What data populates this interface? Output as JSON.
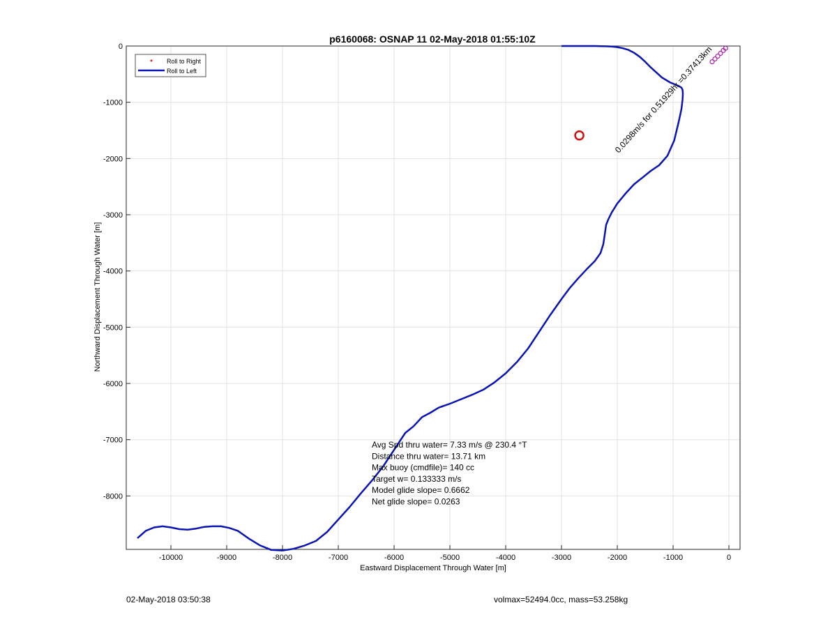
{
  "chart_data": {
    "type": "line",
    "title": "p6160068: OSNAP 11 02-May-2018 01:55:10Z",
    "xlabel": "Eastward Displacement Through Water [m]",
    "ylabel": "Northward Displacement Through Water [m]",
    "xlim": [
      -10800,
      200
    ],
    "ylim": [
      -8950,
      0
    ],
    "xticks": [
      -10000,
      -9000,
      -8000,
      -7000,
      -6000,
      -5000,
      -4000,
      -3000,
      -2000,
      -1000,
      0
    ],
    "yticks": [
      0,
      -1000,
      -2000,
      -3000,
      -4000,
      -5000,
      -6000,
      -7000,
      -8000
    ],
    "xtick_labels": [
      "-10000",
      "-9000",
      "-8000",
      "-7000",
      "-6000",
      "-5000",
      "-4000",
      "-3000",
      "-2000",
      "-1000",
      "0"
    ],
    "ytick_labels": [
      "0",
      "-1000",
      "-2000",
      "-3000",
      "-4000",
      "-5000",
      "-6000",
      "-7000",
      "-8000"
    ],
    "grid": true,
    "legend_position": "top-left",
    "legend": [
      {
        "label": "Roll to Right",
        "color": "#e02020",
        "marker": "dot"
      },
      {
        "label": "Roll to Left",
        "color": "#0a14b4",
        "marker": "line"
      }
    ],
    "series": [
      {
        "name": "Roll to Left",
        "color": "#0a14b4",
        "x": [
          -10600,
          -10450,
          -10300,
          -10150,
          -10000,
          -9850,
          -9700,
          -9550,
          -9400,
          -9250,
          -9100,
          -8950,
          -8800,
          -8600,
          -8400,
          -8200,
          -8000,
          -7800,
          -7600,
          -7400,
          -7200,
          -7000,
          -6800,
          -6600,
          -6400,
          -6200,
          -6000,
          -5800,
          -5650,
          -5500,
          -5350,
          -5200,
          -5000,
          -4800,
          -4600,
          -4400,
          -4200,
          -4000,
          -3800,
          -3600,
          -3400,
          -3200,
          -3000,
          -2850,
          -2700,
          -2550,
          -2400,
          -2300,
          -2250,
          -2220,
          -2200,
          -2160,
          -2100,
          -2000,
          -1850,
          -1700,
          -1550,
          -1400,
          -1250,
          -1100,
          -980,
          -900,
          -850,
          -830,
          -825,
          -830,
          -850,
          -900,
          -950,
          -1000,
          -1050,
          -1100,
          -1200,
          -1300,
          -1400,
          -1500,
          -1600,
          -1700,
          -1800,
          -1900,
          -2000,
          -2100,
          -2200,
          -2300,
          -2400,
          -2500,
          -2600,
          -2700,
          -2800,
          -2900,
          -3000
        ],
        "y": [
          -8750,
          -8620,
          -8560,
          -8540,
          -8560,
          -8590,
          -8600,
          -8580,
          -8550,
          -8540,
          -8540,
          -8570,
          -8620,
          -8760,
          -8880,
          -8960,
          -8970,
          -8940,
          -8880,
          -8800,
          -8640,
          -8420,
          -8200,
          -7960,
          -7730,
          -7480,
          -7180,
          -6880,
          -6760,
          -6600,
          -6520,
          -6430,
          -6360,
          -6280,
          -6200,
          -6110,
          -5980,
          -5820,
          -5620,
          -5380,
          -5080,
          -4780,
          -4500,
          -4300,
          -4130,
          -3970,
          -3820,
          -3680,
          -3520,
          -3320,
          -3180,
          -3080,
          -2960,
          -2800,
          -2620,
          -2460,
          -2340,
          -2220,
          -2120,
          -1950,
          -1680,
          -1350,
          -1120,
          -950,
          -850,
          -780,
          -740,
          -710,
          -690,
          -670,
          -650,
          -620,
          -560,
          -470,
          -380,
          -280,
          -190,
          -120,
          -70,
          -40,
          -20,
          -10,
          -5,
          -2,
          0,
          0,
          0,
          0,
          0,
          0,
          0
        ],
        "_note_unused": ""
      }
    ],
    "points": [
      {
        "name": "target",
        "x": -2680,
        "y": -1590,
        "marker": "circle",
        "color": "#cc1111"
      }
    ],
    "annotations": {
      "rotated_label": "0.0298m/s for 0.51929hr =0.37413km",
      "stats": [
        "Avg Spd thru water=  7.33 m/s @ 230.4 °T",
        "Distance thru water= 13.71 km",
        "Max buoy (cmdfile)= 140 cc",
        "Target w= 0.133333 m/s",
        "Model glide slope= 0.6662",
        "Net glide slope= 0.0263"
      ]
    }
  },
  "footer": {
    "left": "02-May-2018 03:50:38",
    "right": "volmax=52494.0cc, mass=53.258kg"
  }
}
